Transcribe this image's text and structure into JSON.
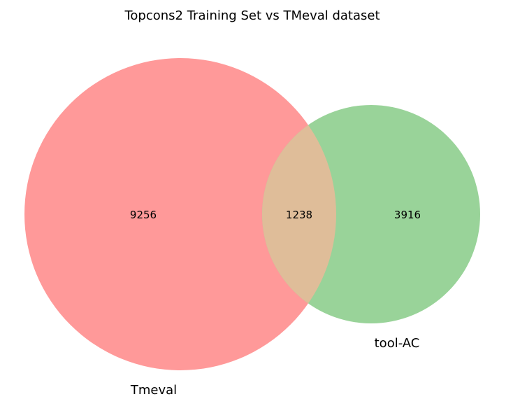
{
  "title": "Topcons2 Training Set vs TMeval dataset",
  "colors": {
    "set_a": "#ff9999",
    "set_b": "#99d399",
    "overlap": "#dfbd99",
    "background": "#ffffff"
  },
  "chart_data": {
    "type": "venn",
    "title": "Topcons2 Training Set vs TMeval dataset",
    "sets": [
      {
        "name": "Tmeval",
        "only_count": 9256
      },
      {
        "name": "tool-AC",
        "only_count": 3916
      }
    ],
    "overlap_count": 1238,
    "region_labels": {
      "a_only": "9256",
      "overlap": "1238",
      "b_only": "3916"
    },
    "set_labels": {
      "a": "Tmeval",
      "b": "tool-AC"
    }
  }
}
